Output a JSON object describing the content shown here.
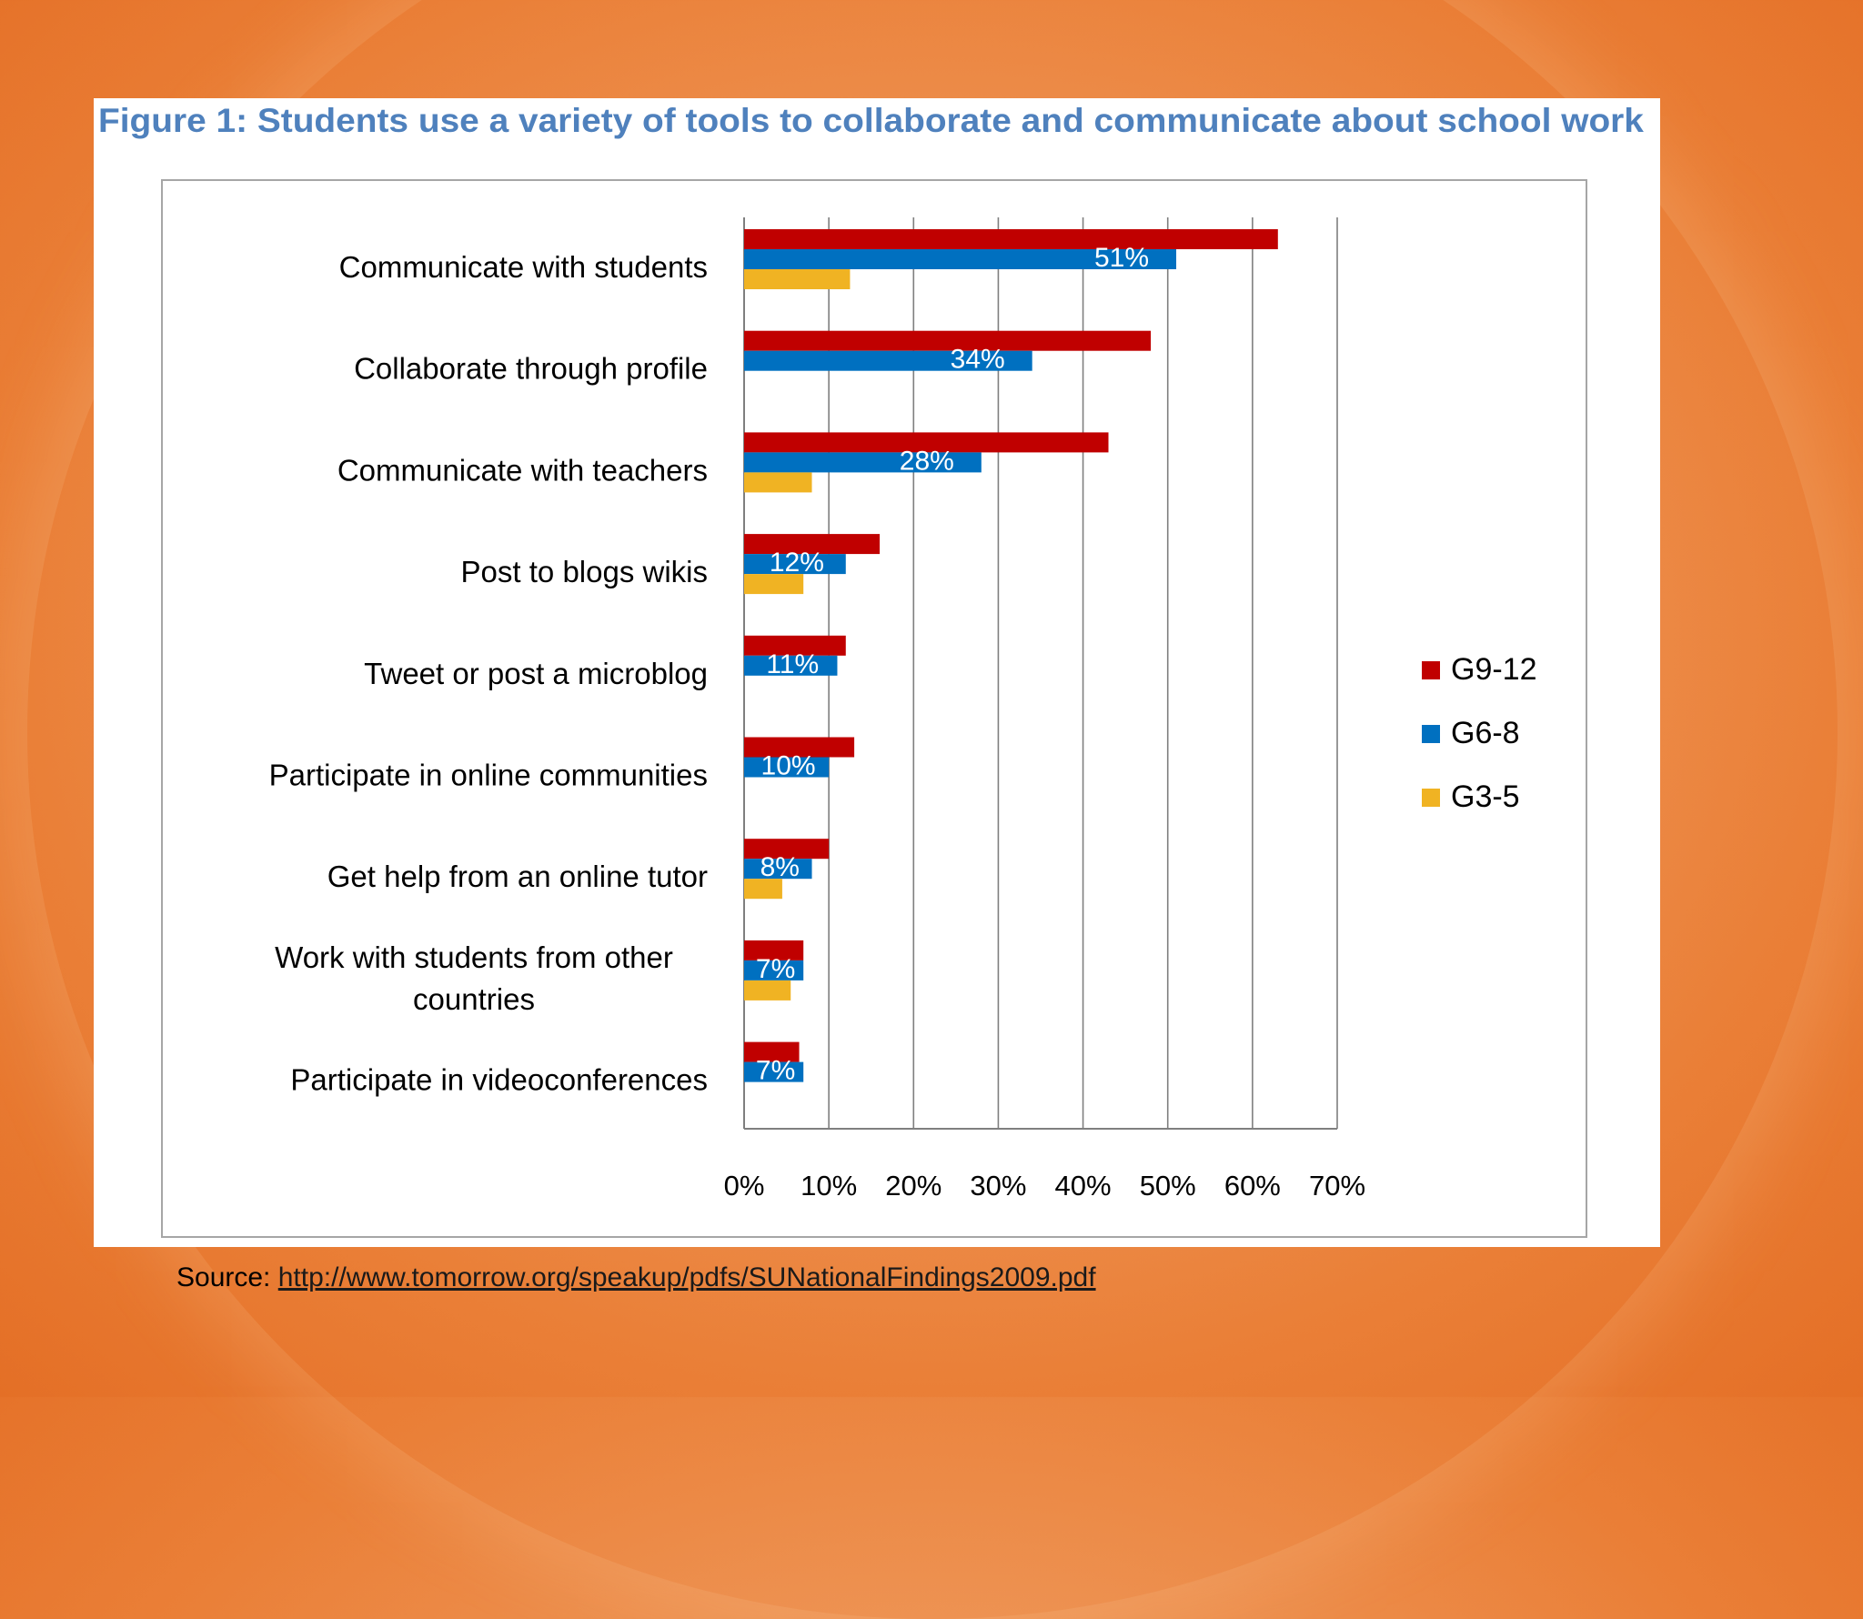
{
  "source": {
    "label": "Source:",
    "link_text": "http://www.tomorrow.org/speakup/pdfs/SUNationalFindings2009.pdf"
  },
  "colors": {
    "G9-12": "#c00000",
    "G6-8": "#0070c0",
    "G3-5": "#f0b323",
    "title": "#4f81bd",
    "grid": "#7f7f7f"
  },
  "chart_data": {
    "type": "bar",
    "orientation": "horizontal",
    "title": "Figure 1: Students use a variety of tools to collaborate and communicate about school work",
    "categories": [
      [
        "Communicate with students"
      ],
      [
        "Collaborate through profile"
      ],
      [
        "Communicate with teachers"
      ],
      [
        "Post to blogs wikis"
      ],
      [
        "Tweet or post a microblog"
      ],
      [
        "Participate in online communities"
      ],
      [
        "Get help from an online tutor"
      ],
      [
        "Work with students from other",
        "countries"
      ],
      [
        "Participate in videoconferences"
      ]
    ],
    "series": [
      {
        "name": "G9-12",
        "values": [
          63,
          48,
          43,
          16,
          12,
          13,
          10,
          7,
          6.5
        ]
      },
      {
        "name": "G6-8",
        "values": [
          51,
          34,
          28,
          12,
          11,
          10,
          8,
          7,
          7
        ],
        "data_labels": [
          "51%",
          "34%",
          "28%",
          "12%",
          "11%",
          "10%",
          "8%",
          "7%",
          "7%"
        ]
      },
      {
        "name": "G3-5",
        "values": [
          12.5,
          0,
          8,
          7,
          0,
          0,
          4.5,
          5.5,
          0
        ]
      }
    ],
    "xlim": [
      0,
      70
    ],
    "xticks": [
      "0%",
      "10%",
      "20%",
      "30%",
      "40%",
      "50%",
      "60%",
      "70%"
    ],
    "grid": true,
    "legend_position": "right"
  }
}
